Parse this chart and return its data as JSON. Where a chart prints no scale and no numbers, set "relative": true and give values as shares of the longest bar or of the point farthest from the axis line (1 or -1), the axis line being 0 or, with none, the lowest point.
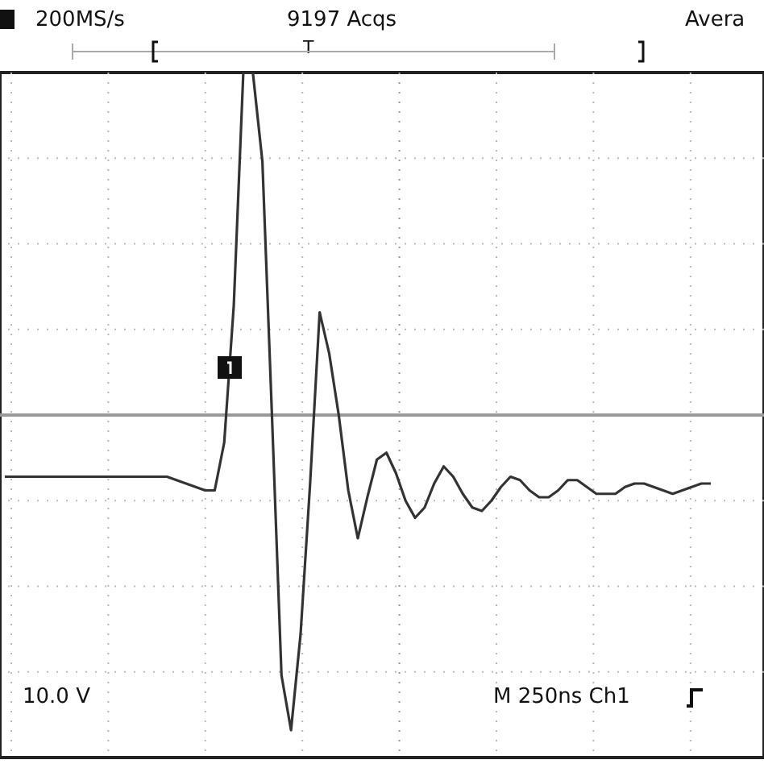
{
  "chart_data": {
    "type": "line",
    "relative": true,
    "grid": true,
    "categories": [
      null,
      null,
      null,
      null,
      null,
      null,
      null,
      null,
      null,
      null,
      null,
      null,
      null,
      null,
      null,
      null,
      null,
      null,
      null,
      null,
      null,
      null,
      null,
      null,
      null,
      null,
      null,
      null,
      null,
      null,
      null,
      null,
      null,
      null,
      null,
      null,
      null,
      null,
      null,
      null,
      null,
      null,
      null,
      null,
      null,
      null,
      null,
      null,
      null,
      null,
      null,
      null,
      null,
      null,
      null,
      null,
      null,
      null,
      null,
      null,
      null,
      null,
      null,
      null,
      null,
      null,
      null,
      null,
      null,
      null,
      null,
      null,
      null,
      null,
      null
    ],
    "series": [
      {
        "color": "#333333",
        "values": [
          -0.18,
          -0.18,
          -0.18,
          -0.18,
          -0.18,
          -0.18,
          -0.18,
          -0.18,
          -0.18,
          -0.18,
          -0.18,
          -0.18,
          -0.18,
          -0.18,
          -0.18,
          -0.18,
          -0.18,
          -0.18,
          -0.19,
          -0.2,
          -0.21,
          -0.22,
          -0.22,
          -0.08,
          0.32,
          1,
          1,
          0.74,
          0,
          -0.76,
          -0.92,
          -0.64,
          -0.2,
          0.3,
          0.18,
          0,
          -0.22,
          -0.36,
          -0.24,
          -0.13,
          -0.11,
          -0.17,
          -0.25,
          -0.3,
          -0.27,
          -0.2,
          -0.15,
          -0.18,
          -0.23,
          -0.27,
          -0.28,
          -0.25,
          -0.21,
          -0.18,
          -0.19,
          -0.22,
          -0.24,
          -0.24,
          -0.22,
          -0.19,
          -0.19,
          -0.21,
          -0.23,
          -0.23,
          -0.23,
          -0.21,
          -0.2,
          -0.2,
          -0.21,
          -0.22,
          -0.23,
          -0.22,
          -0.21,
          -0.2,
          -0.2
        ]
      }
    ],
    "annotations": [
      "200MS/s",
      "9197 Acqs",
      "Avera",
      "T",
      "10.0 V",
      "M 250ns Ch1"
    ]
  }
}
